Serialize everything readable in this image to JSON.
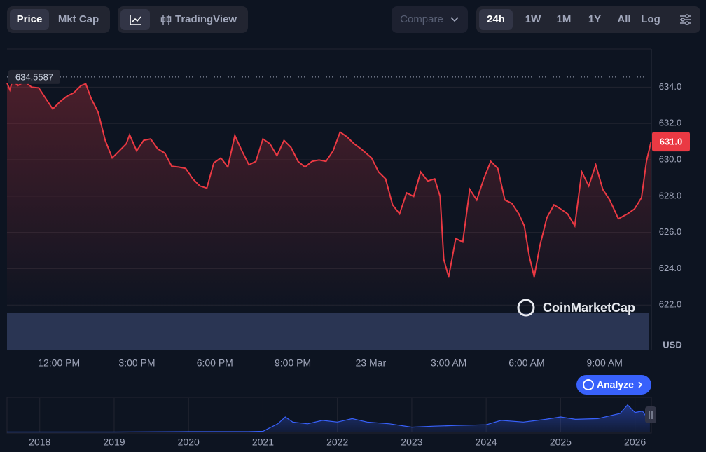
{
  "toolbar": {
    "price": "Price",
    "mkt_cap": "Mkt Cap",
    "tradingview": "TradingView",
    "compare": "Compare",
    "ranges": [
      "24h",
      "1W",
      "1M",
      "1Y",
      "All"
    ],
    "log": "Log"
  },
  "currency_label": "USD",
  "watermark": "CoinMarketCap",
  "analyze": "Analyze",
  "chart_data": [
    {
      "type": "line",
      "color": "#ea3943",
      "x": [
        10.0,
        10.11,
        10.22,
        10.41,
        10.68,
        10.95,
        11.22,
        11.49,
        11.76,
        12.03,
        12.3,
        12.57,
        12.84,
        13.03,
        13.24,
        13.51,
        13.78,
        14.05,
        14.32,
        14.59,
        14.72,
        14.99,
        15.26,
        15.53,
        15.8,
        16.07,
        16.34,
        16.61,
        16.88,
        17.15,
        17.42,
        17.69,
        17.96,
        18.23,
        18.5,
        18.77,
        19.04,
        19.31,
        19.58,
        19.85,
        20.12,
        20.39,
        20.66,
        20.93,
        21.2,
        21.47,
        21.74,
        22.01,
        22.28,
        22.55,
        22.82,
        23.09,
        23.36,
        23.63,
        24.03,
        24.3,
        24.57,
        24.84,
        25.11,
        25.38,
        25.65,
        25.92,
        26.19,
        26.46,
        26.67,
        26.81,
        27.0,
        27.27,
        27.54,
        27.81,
        28.08,
        28.35,
        28.62,
        28.89,
        29.16,
        29.43,
        29.7,
        29.91,
        30.1,
        30.29,
        30.51,
        30.78,
        31.05,
        31.31,
        31.58,
        31.85,
        32.12,
        32.39,
        32.66,
        32.93,
        33.2,
        33.53,
        33.88,
        34.15,
        34.42,
        34.61,
        34.79
      ],
      "values": [
        634.23,
        633.85,
        634.42,
        634.08,
        634.31,
        634.0,
        633.96,
        633.38,
        632.8,
        633.19,
        633.5,
        633.69,
        634.08,
        634.19,
        633.38,
        632.61,
        631.07,
        630.1,
        630.49,
        630.88,
        631.38,
        630.49,
        631.07,
        631.15,
        630.6,
        630.37,
        629.64,
        629.6,
        629.52,
        628.95,
        628.56,
        628.44,
        629.83,
        630.1,
        629.6,
        631.34,
        630.49,
        629.72,
        629.91,
        631.15,
        630.88,
        630.22,
        631.07,
        630.68,
        629.91,
        629.6,
        629.91,
        629.99,
        629.91,
        630.49,
        631.53,
        631.26,
        630.88,
        630.6,
        630.1,
        629.33,
        628.95,
        627.52,
        627.02,
        628.18,
        627.98,
        629.33,
        628.83,
        628.95,
        627.98,
        624.51,
        623.55,
        625.67,
        625.47,
        628.37,
        627.79,
        628.95,
        629.91,
        629.52,
        627.79,
        627.6,
        627.02,
        626.36,
        624.7,
        623.55,
        625.28,
        626.82,
        627.52,
        627.29,
        627.02,
        626.36,
        629.33,
        628.56,
        629.72,
        628.37,
        627.79,
        626.75,
        627.02,
        627.29,
        627.91,
        629.91,
        631.0
      ],
      "xlim": [
        10,
        34.8
      ],
      "ylim": [
        619.5,
        636.1
      ],
      "xticks": [
        {
          "value": 12,
          "label": "12:00 PM"
        },
        {
          "value": 15,
          "label": "3:00 PM"
        },
        {
          "value": 18,
          "label": "6:00 PM"
        },
        {
          "value": 21,
          "label": "9:00 PM"
        },
        {
          "value": 24,
          "label": "23 Mar"
        },
        {
          "value": 27,
          "label": "3:00 AM"
        },
        {
          "value": 30,
          "label": "6:00 AM"
        },
        {
          "value": 33,
          "label": "9:00 AM"
        }
      ],
      "yticks": [
        {
          "value": 622,
          "label": "622.0"
        },
        {
          "value": 624,
          "label": "624.0"
        },
        {
          "value": 626,
          "label": "626.0"
        },
        {
          "value": 628,
          "label": "628.0"
        },
        {
          "value": 630,
          "label": "630.0"
        },
        {
          "value": 632,
          "label": "632.0"
        },
        {
          "value": 634,
          "label": "634.0"
        }
      ],
      "grid": true,
      "reference_price": 634.5587,
      "current_price": {
        "value": 631.0,
        "label": "631.0"
      }
    },
    {
      "type": "area",
      "color": "#3861fb",
      "x": [
        2017.56,
        2018,
        2019,
        2020,
        2020.8,
        2021.0,
        2021.2,
        2021.3,
        2021.4,
        2021.6,
        2021.8,
        2022.0,
        2022.2,
        2022.4,
        2022.7,
        2023.0,
        2023.3,
        2023.6,
        2024.0,
        2024.2,
        2024.5,
        2024.8,
        2025.0,
        2025.2,
        2025.5,
        2025.8,
        2025.9,
        2026.0,
        2026.1,
        2026.2
      ],
      "values": [
        1,
        1,
        1,
        2,
        2,
        3,
        25,
        45,
        30,
        25,
        35,
        30,
        40,
        30,
        25,
        15,
        18,
        20,
        22,
        35,
        30,
        38,
        45,
        38,
        40,
        55,
        80,
        58,
        62,
        30
      ],
      "xlim": [
        2017.56,
        2026.22
      ],
      "ylim": [
        0,
        100
      ],
      "xticks": [
        2018,
        2019,
        2020,
        2021,
        2022,
        2023,
        2024,
        2025,
        2026
      ]
    }
  ]
}
